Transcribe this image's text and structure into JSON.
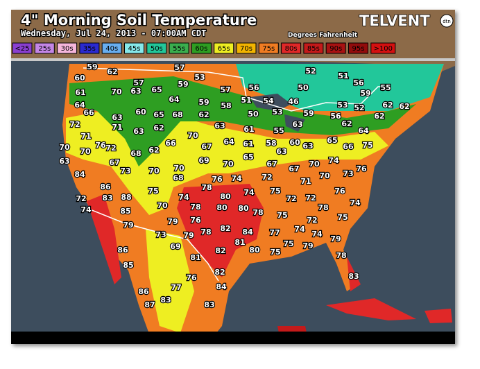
{
  "header": {
    "title": "4\" Morning Soil Temperature",
    "subtitle": "Wednesday, Jul 24, 2013 - 07:00AM CDT",
    "units": "Degrees Fahrenheit",
    "brand": "TELVENT",
    "brand_badge": "dtn"
  },
  "legend": [
    {
      "label": "<25",
      "color": "#8a3fd0"
    },
    {
      "label": "25s",
      "color": "#c486e6"
    },
    {
      "label": "30s",
      "color": "#f6b6dc"
    },
    {
      "label": "35s",
      "color": "#2a2ad0"
    },
    {
      "label": "40s",
      "color": "#68aef0"
    },
    {
      "label": "45s",
      "color": "#86e8ea"
    },
    {
      "label": "50s",
      "color": "#22c79a"
    },
    {
      "label": "55s",
      "color": "#3aae4e"
    },
    {
      "label": "60s",
      "color": "#2e9e22"
    },
    {
      "label": "65s",
      "color": "#eeee22"
    },
    {
      "label": "70s",
      "color": "#f2b400"
    },
    {
      "label": "75s",
      "color": "#f07c22"
    },
    {
      "label": "80s",
      "color": "#e02828"
    },
    {
      "label": "85s",
      "color": "#c41a1a"
    },
    {
      "label": "90s",
      "color": "#a81212"
    },
    {
      "label": "95s",
      "color": "#920c0c"
    },
    {
      "label": ">100",
      "color": "#d41010"
    }
  ],
  "stations": [
    59,
    62,
    57,
    53,
    52,
    51,
    56,
    60,
    57,
    59,
    57,
    56,
    50,
    59,
    55,
    61,
    70,
    63,
    65,
    64,
    59,
    58,
    51,
    54,
    46,
    53,
    52,
    62,
    62,
    64,
    66,
    60,
    68,
    62,
    50,
    53,
    59,
    63,
    65,
    56,
    62,
    72,
    71,
    63,
    62,
    63,
    61,
    55,
    63,
    62,
    64,
    71,
    70,
    64,
    61,
    58,
    60,
    63,
    65,
    66,
    75,
    70,
    70,
    76,
    72,
    68,
    62,
    66,
    67,
    63,
    63,
    67,
    69,
    70,
    65,
    67,
    67,
    70,
    74,
    76,
    84,
    73,
    70,
    70,
    68,
    76,
    74,
    72,
    71,
    70,
    73,
    78,
    80,
    74,
    75,
    72,
    72,
    76,
    86,
    72,
    83,
    88,
    75,
    74,
    74,
    78,
    74,
    85,
    70,
    78,
    80,
    80,
    78,
    75,
    72,
    75,
    79,
    79,
    76,
    82,
    84,
    77,
    74,
    74,
    73,
    79,
    78,
    81,
    80,
    75,
    75,
    79,
    79,
    86,
    69,
    82,
    81,
    78,
    85,
    82,
    76,
    83,
    86,
    77,
    84,
    87,
    83,
    83
  ]
}
